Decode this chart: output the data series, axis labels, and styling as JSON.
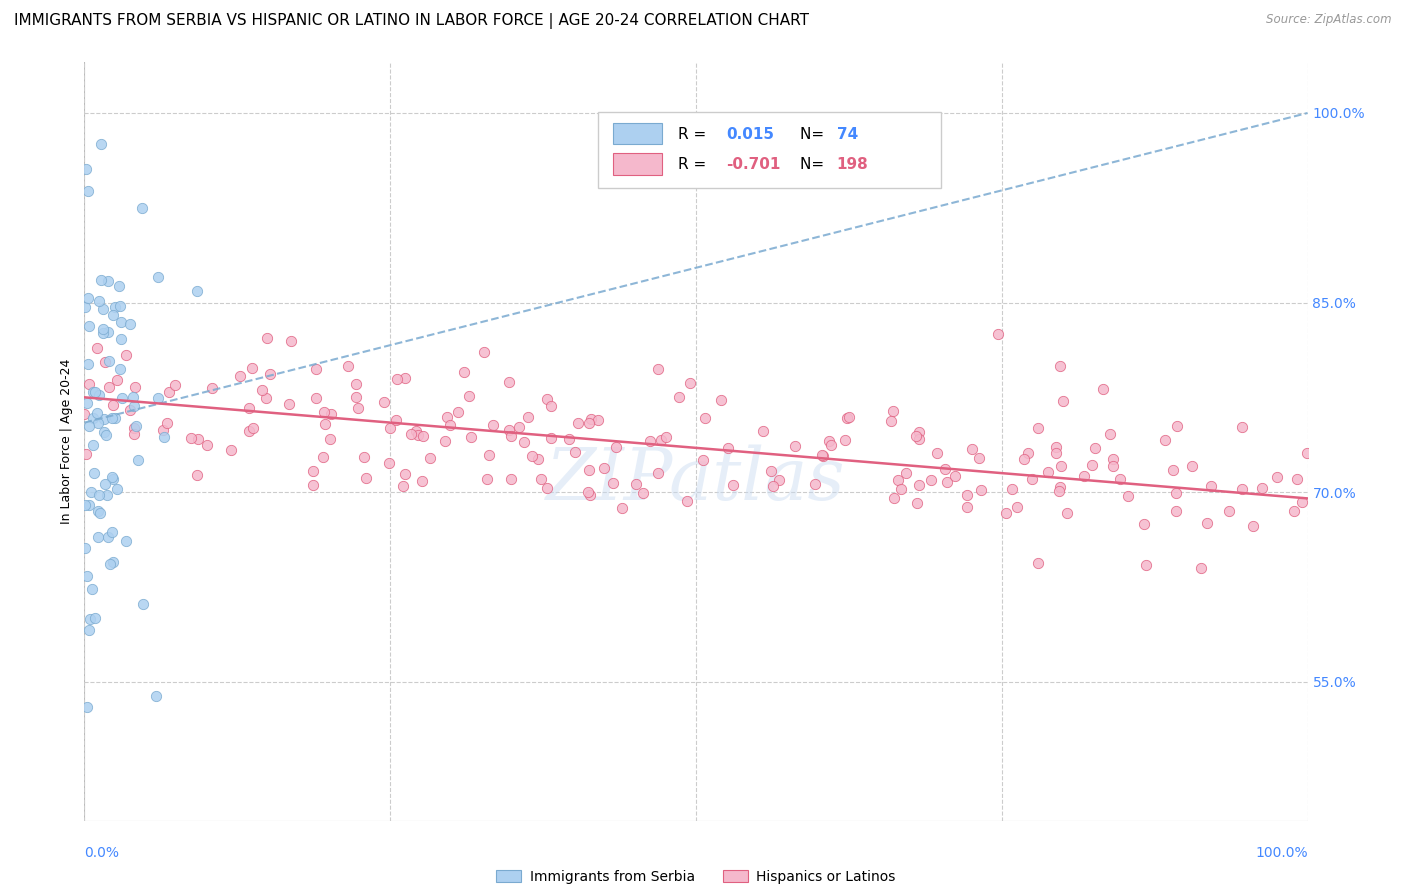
{
  "title": "IMMIGRANTS FROM SERBIA VS HISPANIC OR LATINO IN LABOR FORCE | AGE 20-24 CORRELATION CHART",
  "source": "Source: ZipAtlas.com",
  "ylabel": "In Labor Force | Age 20-24",
  "serbia_R": 0.015,
  "serbia_N": 74,
  "hispanic_R": -0.701,
  "hispanic_N": 198,
  "serbia_color": "#add0f0",
  "serbia_edge_color": "#7aaad0",
  "serbia_line_color": "#7aaad0",
  "hispanic_color": "#f5b8cc",
  "hispanic_edge_color": "#e06080",
  "hispanic_line_color": "#e06080",
  "ytick_vals": [
    0.55,
    0.7,
    0.85,
    1.0
  ],
  "ytick_labels": [
    "55.0%",
    "70.0%",
    "85.0%",
    "100.0%"
  ],
  "ytick_color": "#4488ff",
  "legend_serbia_label": "Immigrants from Serbia",
  "legend_hispanic_label": "Hispanics or Latinos",
  "watermark": "ZIPatlas",
  "title_fontsize": 11,
  "axis_label_fontsize": 9,
  "legend_fontsize": 11,
  "xmin": 0.0,
  "xmax": 1.0,
  "ymin": 0.44,
  "ymax": 1.04,
  "serbia_line_start_y": 0.755,
  "serbia_line_end_y": 1.0,
  "hispanic_line_start_y": 0.775,
  "hispanic_line_end_y": 0.695
}
